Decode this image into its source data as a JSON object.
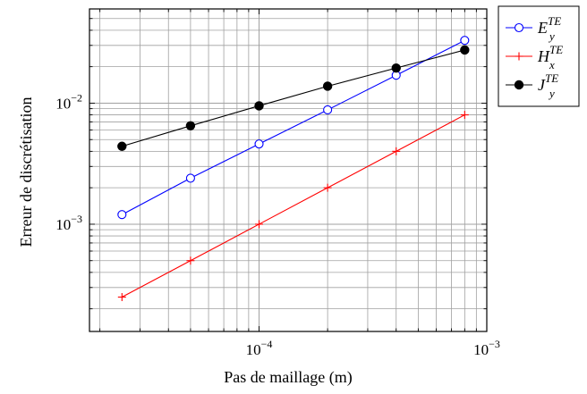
{
  "chart_data": {
    "type": "line",
    "xlabel": "Pas de maillage (m)",
    "ylabel": "Erreur de discrétisation",
    "x_scale": "log",
    "y_scale": "log",
    "xlim": [
      1.8e-05,
      0.001
    ],
    "ylim": [
      0.00013,
      0.06
    ],
    "grid": true,
    "legend_position": "outside-top-right",
    "x_ticks": [
      {
        "value": 0.0001,
        "base": "10",
        "exp": "−4"
      },
      {
        "value": 0.001,
        "base": "10",
        "exp": "−3"
      }
    ],
    "y_ticks": [
      {
        "value": 0.001,
        "base": "10",
        "exp": "−3"
      },
      {
        "value": 0.01,
        "base": "10",
        "exp": "−2"
      }
    ],
    "x": [
      2.5e-05,
      5e-05,
      0.0001,
      0.0002,
      0.0004,
      0.0008
    ],
    "series": [
      {
        "name": "E",
        "name_sup": "TE",
        "name_sub": "y",
        "color": "#0000ff",
        "marker": "open-circle",
        "values": [
          0.0012,
          0.0024,
          0.0046,
          0.0088,
          0.017,
          0.033
        ]
      },
      {
        "name": "H",
        "name_sup": "TE",
        "name_sub": "x",
        "color": "#ff0000",
        "marker": "plus",
        "values": [
          0.00025,
          0.0005,
          0.001,
          0.002,
          0.004,
          0.008
        ]
      },
      {
        "name": "J",
        "name_sup": "TE",
        "name_sub": "y",
        "color": "#000000",
        "marker": "filled-circle",
        "values": [
          0.0044,
          0.0065,
          0.0095,
          0.0138,
          0.0195,
          0.0275
        ]
      }
    ]
  }
}
